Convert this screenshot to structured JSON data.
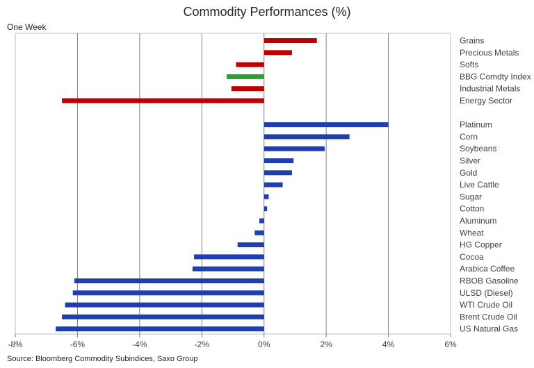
{
  "chart_data": {
    "type": "bar",
    "orientation": "horizontal",
    "title": "Commodity Performances (%)",
    "period": "One  Week",
    "source": "Source: Bloomberg Commodity Subindices, Saxo Group",
    "xlim": [
      -8,
      6
    ],
    "xticks": [
      -8,
      -6,
      -4,
      -2,
      0,
      2,
      4,
      6
    ],
    "xtick_labels": [
      "-8%",
      "-6%",
      "-4%",
      "-2%",
      "0%",
      "2%",
      "4%",
      "6%"
    ],
    "grid": "vertical",
    "colors": {
      "red": "#c00000",
      "green": "#2ca02c",
      "blue": "#1f3fae"
    },
    "groups": [
      {
        "items": [
          {
            "label": "Grains",
            "value": 1.7,
            "color": "red"
          },
          {
            "label": "Precious Metals",
            "value": 0.9,
            "color": "red"
          },
          {
            "label": "Softs",
            "value": -0.9,
            "color": "red"
          },
          {
            "label": "BBG Comdty Index",
            "value": -1.2,
            "color": "green"
          },
          {
            "label": "Industrial Metals",
            "value": -1.05,
            "color": "red"
          },
          {
            "label": "Energy Sector",
            "value": -6.5,
            "color": "red"
          }
        ]
      },
      {
        "items": [
          {
            "label": "Platinum",
            "value": 4.0,
            "color": "blue"
          },
          {
            "label": "Corn",
            "value": 2.75,
            "color": "blue"
          },
          {
            "label": "Soybeans",
            "value": 1.95,
            "color": "blue"
          },
          {
            "label": "Silver",
            "value": 0.95,
            "color": "blue"
          },
          {
            "label": "Gold",
            "value": 0.9,
            "color": "blue"
          },
          {
            "label": "Live Cattle",
            "value": 0.6,
            "color": "blue"
          },
          {
            "label": "Sugar",
            "value": 0.15,
            "color": "blue"
          },
          {
            "label": "Cotton",
            "value": 0.1,
            "color": "blue"
          },
          {
            "label": "Aluminum",
            "value": -0.15,
            "color": "blue"
          },
          {
            "label": "Wheat",
            "value": -0.3,
            "color": "blue"
          },
          {
            "label": "HG Copper",
            "value": -0.85,
            "color": "blue"
          },
          {
            "label": "Cocoa",
            "value": -2.25,
            "color": "blue"
          },
          {
            "label": "Arabica Coffee",
            "value": -2.3,
            "color": "blue"
          },
          {
            "label": "RBOB Gasoline",
            "value": -6.1,
            "color": "blue"
          },
          {
            "label": "ULSD (Diesel)",
            "value": -6.15,
            "color": "blue"
          },
          {
            "label": "WTI Crude Oil",
            "value": -6.4,
            "color": "blue"
          },
          {
            "label": "Brent Crude Oil",
            "value": -6.5,
            "color": "blue"
          },
          {
            "label": "US Natural Gas",
            "value": -6.7,
            "color": "blue"
          }
        ]
      }
    ]
  }
}
